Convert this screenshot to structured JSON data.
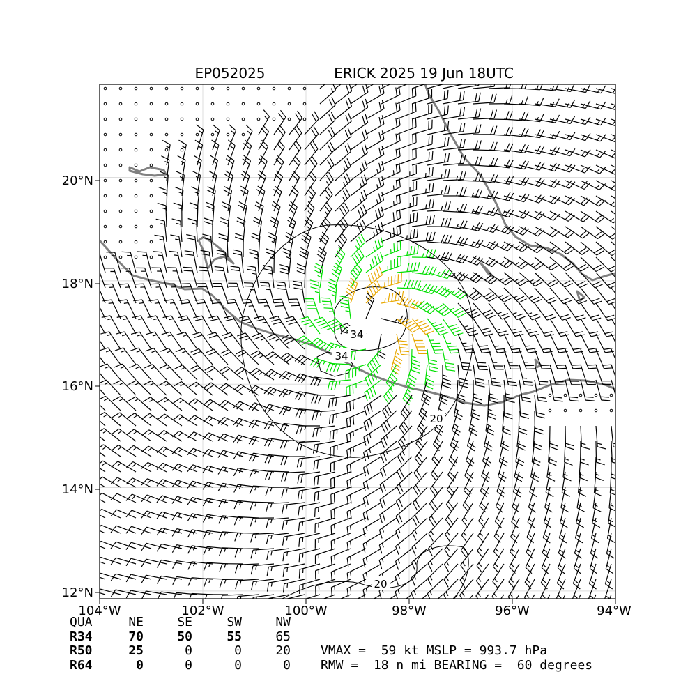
{
  "title": {
    "storm_id": "EP052025",
    "storm_name_time": "ERICK 2025 19 Jun 18UTC"
  },
  "axes": {
    "x_ticks": [
      "104°W",
      "102°W",
      "100°W",
      "98°W",
      "96°W",
      "94°W"
    ],
    "y_ticks": [
      "20°N",
      "18°N",
      "16°N",
      "14°N",
      "12°N"
    ],
    "lon_range": [
      -104,
      -94
    ],
    "lat_range": [
      11.85,
      21.8
    ]
  },
  "contour_labels": [
    "34",
    "34",
    "20",
    "20"
  ],
  "colors": {
    "below_34kt": "#000000",
    "34_to_50kt": "#00e000",
    "50_to_64kt": "#e8a800",
    "coastline": "#808080",
    "grid": "#dddddd"
  },
  "wind_radii_table": {
    "header": [
      "QUA",
      "NE",
      "SE",
      "SW",
      "NW"
    ],
    "rows": [
      {
        "label": "R34",
        "values": [
          "70",
          "50",
          "55",
          "65"
        ]
      },
      {
        "label": "R50",
        "values": [
          "25",
          "0",
          "0",
          "20"
        ]
      },
      {
        "label": "R64",
        "values": [
          "0",
          "0",
          "0",
          "0"
        ]
      }
    ]
  },
  "summary": {
    "line1": "VMAX =  59 kt MSLP = 993.7 hPa",
    "line2": "RMW =  18 n mi BEARING =  60 degrees"
  },
  "storm": {
    "center_lon": -98.7,
    "center_lat": 17.1,
    "vmax_kt": 59,
    "rmw_nmi": 18,
    "bearing_deg": 60
  }
}
